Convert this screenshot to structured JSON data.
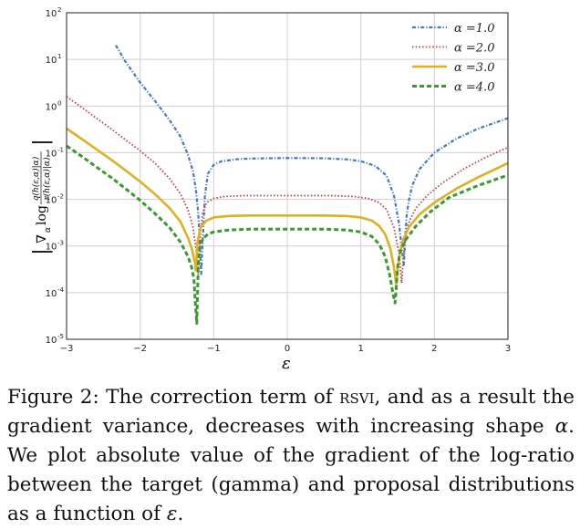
{
  "chart_data": {
    "type": "line",
    "xlabel": "ε",
    "ylabel": "|∇α log q(h(ε,α)|α) / r(h(ε,α)|α)|",
    "ylabel_parts": {
      "open": "|",
      "nabla": "∇",
      "sub_alpha": "α",
      "log": "log",
      "numerator": "q(h(ε,α)|α)",
      "denominator": "r(h(ε,α)|α)",
      "close": "|"
    },
    "xlim": [
      -3,
      3
    ],
    "ylim_log10": [
      -5,
      2
    ],
    "yscale": "log",
    "grid": true,
    "legend_position": "top-right",
    "x_ticks": [
      {
        "v": -3,
        "label": "−3"
      },
      {
        "v": -2,
        "label": "−2"
      },
      {
        "v": -1,
        "label": "−1"
      },
      {
        "v": 0,
        "label": "0"
      },
      {
        "v": 1,
        "label": "1"
      },
      {
        "v": 2,
        "label": "2"
      },
      {
        "v": 3,
        "label": "3"
      }
    ],
    "y_ticks": [
      {
        "v": -5,
        "base": "10",
        "exp": "-5"
      },
      {
        "v": -4,
        "base": "10",
        "exp": "-4"
      },
      {
        "v": -3,
        "base": "10",
        "exp": "-3"
      },
      {
        "v": -2,
        "base": "10",
        "exp": "-2"
      },
      {
        "v": -1,
        "base": "10",
        "exp": "-1"
      },
      {
        "v": 0,
        "base": "10",
        "exp": "0"
      },
      {
        "v": 1,
        "base": "10",
        "exp": "1"
      },
      {
        "v": 2,
        "base": "10",
        "exp": "2"
      }
    ],
    "series": [
      {
        "name": "α =1.0",
        "color": "#4477cc",
        "style": "dashdot",
        "x": [
          -2.33,
          -2.2,
          -2.0,
          -1.8,
          -1.6,
          -1.45,
          -1.35,
          -1.28,
          -1.24,
          -1.21,
          -1.19,
          -1.17,
          -1.15,
          -1.12,
          -1.08,
          -1.0,
          -0.9,
          -0.7,
          -0.5,
          0.0,
          0.5,
          0.8,
          1.0,
          1.2,
          1.35,
          1.45,
          1.52,
          1.56,
          1.585,
          1.6,
          1.62,
          1.65,
          1.7,
          1.8,
          2.0,
          2.3,
          2.6,
          3.0
        ],
        "y": [
          20,
          9,
          3.2,
          1.3,
          0.5,
          0.22,
          0.09,
          0.04,
          0.015,
          0.005,
          0.0012,
          0.00025,
          0.0012,
          0.012,
          0.035,
          0.055,
          0.065,
          0.072,
          0.075,
          0.077,
          0.076,
          0.072,
          0.066,
          0.052,
          0.032,
          0.012,
          0.003,
          0.0008,
          0.0004,
          0.0012,
          0.004,
          0.009,
          0.02,
          0.045,
          0.1,
          0.2,
          0.33,
          0.55
        ]
      },
      {
        "name": "α =2.0",
        "color": "#c93a3a",
        "style": "dotted",
        "x": [
          -3.0,
          -2.8,
          -2.6,
          -2.4,
          -2.2,
          -2.0,
          -1.8,
          -1.6,
          -1.45,
          -1.35,
          -1.28,
          -1.24,
          -1.21,
          -1.2,
          -1.18,
          -1.15,
          -1.1,
          -1.0,
          -0.85,
          -0.6,
          -0.3,
          0.0,
          0.3,
          0.6,
          0.9,
          1.1,
          1.25,
          1.35,
          1.45,
          1.52,
          1.555,
          1.575,
          1.6,
          1.63,
          1.68,
          1.75,
          1.9,
          2.1,
          2.4,
          2.7,
          3.0
        ],
        "y": [
          1.6,
          0.95,
          0.56,
          0.33,
          0.19,
          0.11,
          0.06,
          0.028,
          0.013,
          0.006,
          0.0025,
          0.0009,
          0.00025,
          0.0006,
          0.002,
          0.005,
          0.0085,
          0.0105,
          0.0115,
          0.012,
          0.012,
          0.012,
          0.012,
          0.012,
          0.0115,
          0.0105,
          0.0085,
          0.006,
          0.0025,
          0.0007,
          0.00016,
          0.0005,
          0.0012,
          0.0025,
          0.004,
          0.0065,
          0.012,
          0.022,
          0.045,
          0.08,
          0.13
        ]
      },
      {
        "name": "α =3.0",
        "color": "#e0b020",
        "style": "solid",
        "x": [
          -3.0,
          -2.8,
          -2.6,
          -2.4,
          -2.2,
          -2.0,
          -1.8,
          -1.6,
          -1.45,
          -1.35,
          -1.3,
          -1.27,
          -1.25,
          -1.245,
          -1.22,
          -1.18,
          -1.1,
          -1.0,
          -0.8,
          -0.5,
          0.0,
          0.5,
          0.8,
          1.0,
          1.15,
          1.25,
          1.33,
          1.4,
          1.45,
          1.48,
          1.5,
          1.53,
          1.57,
          1.65,
          1.8,
          2.0,
          2.3,
          2.6,
          3.0
        ],
        "y": [
          0.33,
          0.2,
          0.12,
          0.072,
          0.042,
          0.024,
          0.013,
          0.0065,
          0.0033,
          0.0015,
          0.0009,
          0.00055,
          0.0004,
          0.0003,
          0.0012,
          0.0025,
          0.0035,
          0.0041,
          0.0044,
          0.0045,
          0.0045,
          0.0045,
          0.0044,
          0.0041,
          0.0035,
          0.0027,
          0.0018,
          0.0009,
          0.00035,
          0.00015,
          0.0003,
          0.0007,
          0.0013,
          0.0025,
          0.0048,
          0.0085,
          0.017,
          0.03,
          0.06
        ]
      },
      {
        "name": "α =4.0",
        "color": "#3a9a30",
        "style": "dashed",
        "x": [
          -3.0,
          -2.8,
          -2.6,
          -2.4,
          -2.2,
          -2.0,
          -1.8,
          -1.6,
          -1.45,
          -1.35,
          -1.3,
          -1.27,
          -1.25,
          -1.23,
          -1.21,
          -1.19,
          -1.15,
          -1.08,
          -1.0,
          -0.8,
          -0.5,
          0.0,
          0.5,
          0.8,
          1.0,
          1.15,
          1.25,
          1.33,
          1.39,
          1.44,
          1.465,
          1.48,
          1.5,
          1.53,
          1.6,
          1.75,
          1.95,
          2.2,
          2.6,
          3.0
        ],
        "y": [
          0.14,
          0.085,
          0.05,
          0.03,
          0.017,
          0.0095,
          0.005,
          0.0025,
          0.0012,
          0.0006,
          0.00035,
          0.0002,
          6e-05,
          2.2e-05,
          0.0004,
          0.0009,
          0.0014,
          0.0018,
          0.002,
          0.0022,
          0.0023,
          0.0023,
          0.0023,
          0.0022,
          0.002,
          0.0016,
          0.0011,
          0.0006,
          0.00025,
          9e-05,
          6e-05,
          0.00012,
          0.00035,
          0.0007,
          0.0013,
          0.0027,
          0.0055,
          0.011,
          0.02,
          0.033
        ]
      }
    ]
  },
  "caption": {
    "label": "Figure 2:",
    "t1": " The correction term of ",
    "method": "rsvi",
    "t2": ", and as a result the gradient variance, decreases with increasing shape ",
    "sym_alpha": "α",
    "t3": ".  We plot absolute value of the gradient of the log-ratio between the target (gamma) and proposal distributions as a function of ",
    "sym_eps": "ε",
    "t4": "."
  }
}
